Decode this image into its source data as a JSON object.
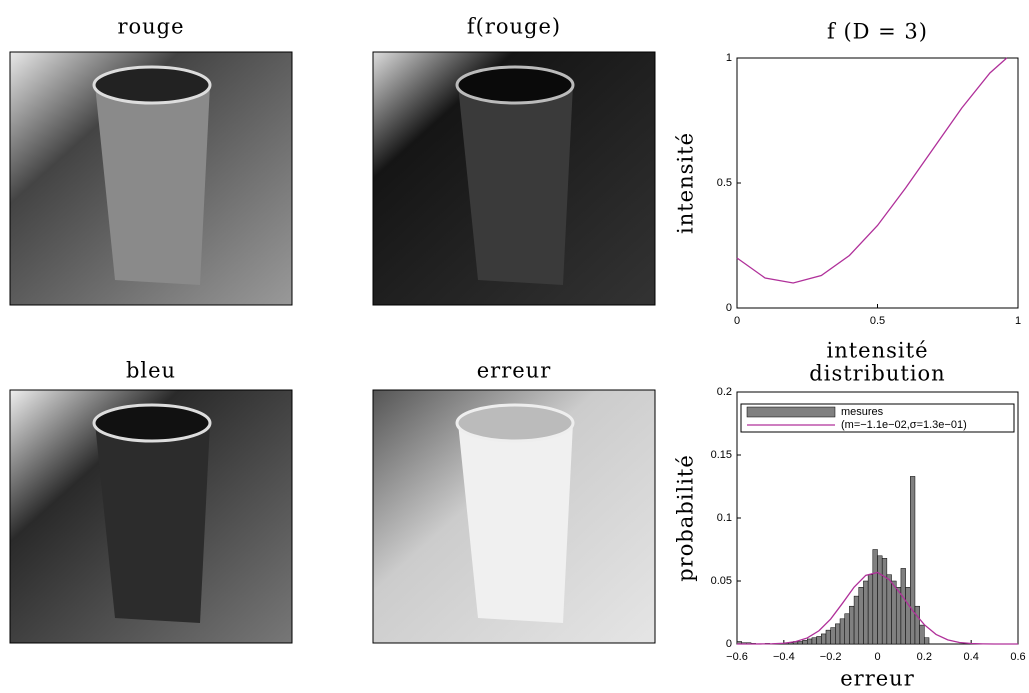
{
  "panels": [
    {
      "title": "rouge"
    },
    {
      "title": "f(rouge)"
    },
    {
      "title": "bleu"
    },
    {
      "title": "erreur"
    }
  ],
  "chart_data": [
    {
      "type": "line",
      "title": "f (D = 3)",
      "y_label": "intensité",
      "series": [
        {
          "color": "#b0309a",
          "x": [
            0,
            0.1,
            0.2,
            0.3,
            0.4,
            0.5,
            0.6,
            0.7,
            0.8,
            0.9,
            0.96
          ],
          "values": [
            0.2,
            0.12,
            0.1,
            0.13,
            0.21,
            0.33,
            0.48,
            0.64,
            0.8,
            0.94,
            1.0
          ]
        }
      ],
      "xlim": [
        0,
        1
      ],
      "xticks": [
        0,
        0.5,
        1
      ],
      "ylim": [
        0,
        1
      ],
      "yticks": [
        0,
        0.5,
        1
      ],
      "grid": false
    },
    {
      "type": "histogram",
      "title": [
        "intensité",
        "distribution"
      ],
      "x_label": "erreur",
      "y_label": "probabilité",
      "legend": "top",
      "series": [
        {
          "name": "mesures",
          "color": "#808080",
          "bins": [
            -0.6,
            -0.58,
            -0.56,
            -0.54,
            -0.52,
            -0.5,
            -0.48,
            -0.46,
            -0.44,
            -0.42,
            -0.4,
            -0.38,
            -0.36,
            -0.34,
            -0.32,
            -0.3,
            -0.28,
            -0.26,
            -0.24,
            -0.22,
            -0.2,
            -0.18,
            -0.16,
            -0.14,
            -0.12,
            -0.1,
            -0.08,
            -0.06,
            -0.04,
            -0.02,
            0,
            0.02,
            0.04,
            0.06,
            0.08,
            0.1,
            0.12,
            0.14,
            0.16,
            0.18,
            0.2,
            0.22
          ],
          "values": [
            0.002,
            0.001,
            0.001,
            0.0005,
            0,
            0,
            0.0005,
            0,
            0,
            0.0005,
            0.001,
            0.001,
            0.002,
            0.002,
            0.003,
            0.004,
            0.005,
            0.006,
            0.008,
            0.011,
            0.013,
            0.016,
            0.02,
            0.024,
            0.03,
            0.038,
            0.045,
            0.05,
            0.055,
            0.075,
            0.07,
            0.068,
            0.055,
            0.05,
            0.045,
            0.06,
            0.045,
            0.133,
            0.03,
            0.015,
            0.005
          ]
        },
        {
          "name": "(m=−1.1e−02,σ=1.3e−01)",
          "color": "#b0309a",
          "x": [
            -0.6,
            -0.55,
            -0.5,
            -0.45,
            -0.4,
            -0.35,
            -0.3,
            -0.25,
            -0.2,
            -0.15,
            -0.1,
            -0.05,
            0,
            0.05,
            0.1,
            0.15,
            0.2,
            0.25,
            0.3,
            0.35,
            0.4,
            0.45,
            0.5,
            0.55,
            0.6
          ],
          "values": [
            0,
            0,
            5e-05,
            0.0002,
            0.0006,
            0.0019,
            0.0048,
            0.0105,
            0.0198,
            0.0322,
            0.0451,
            0.0545,
            0.0568,
            0.0511,
            0.0396,
            0.0265,
            0.0153,
            0.0076,
            0.0033,
            0.0012,
            0.0004,
            0.0001,
            0,
            0,
            0
          ]
        }
      ],
      "xlim": [
        -0.6,
        0.6
      ],
      "xticks": [
        {
          "value": -0.6,
          "label": "−0.6"
        },
        {
          "value": -0.4,
          "label": "−0.4"
        },
        {
          "value": -0.2,
          "label": "−0.2"
        },
        0,
        0.2,
        0.4,
        0.6
      ],
      "ylim": [
        0,
        0.2
      ],
      "yticks": [
        0,
        0.05,
        0.1,
        0.15,
        0.2
      ],
      "grid": false
    }
  ]
}
